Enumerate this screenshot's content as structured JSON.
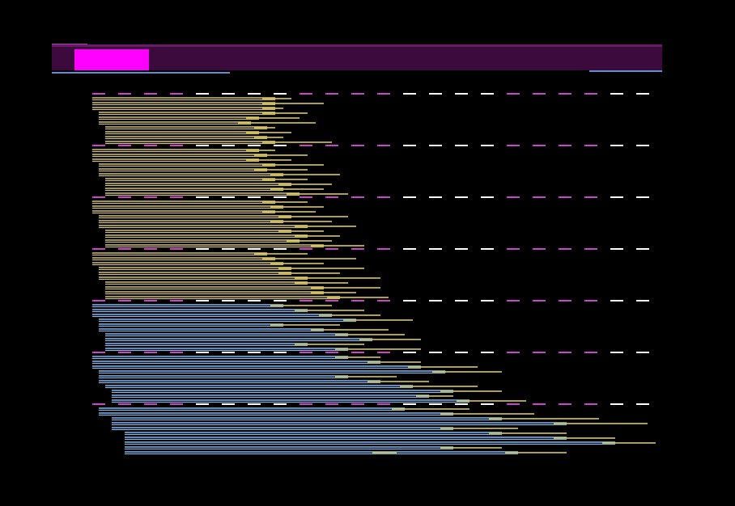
{
  "colors": {
    "background": "#000000",
    "header_fill": "#3d0a3d",
    "header_border": "#6a1a6a",
    "highlight": "#ff00ff",
    "underline": "#5f8fcf",
    "separator_magenta": "#cc44cc",
    "separator_white": "#ffffff",
    "bar_tan": "#cfc08a",
    "bar_blue": "#8fb4e8",
    "tail_yellow": "#e8d84a"
  },
  "groups": [
    {
      "palette": "tan",
      "indents": [
        0,
        0,
        0,
        8,
        8,
        8,
        16,
        16,
        16,
        16
      ],
      "ends": [
        340,
        340,
        340,
        340,
        320,
        310,
        330,
        320,
        330,
        340
      ],
      "tails": [
        360,
        400,
        350,
        380,
        370,
        390,
        340,
        360,
        350,
        410
      ]
    },
    {
      "palette": "tan",
      "indents": [
        0,
        0,
        0,
        8,
        8,
        8,
        16,
        16,
        16,
        16
      ],
      "ends": [
        320,
        330,
        320,
        340,
        330,
        350,
        340,
        360,
        350,
        370
      ],
      "tails": [
        340,
        380,
        360,
        400,
        380,
        420,
        380,
        410,
        400,
        430
      ]
    },
    {
      "palette": "tan",
      "indents": [
        0,
        0,
        0,
        8,
        8,
        8,
        16,
        16,
        16,
        16
      ],
      "ends": [
        340,
        350,
        340,
        360,
        350,
        380,
        360,
        380,
        370,
        400
      ],
      "tails": [
        380,
        400,
        390,
        430,
        410,
        440,
        400,
        420,
        410,
        450
      ]
    },
    {
      "palette": "tan",
      "indents": [
        0,
        0,
        0,
        8,
        8,
        8,
        16,
        16,
        16,
        16
      ],
      "ends": [
        330,
        340,
        350,
        360,
        360,
        380,
        380,
        400,
        400,
        420
      ],
      "tails": [
        380,
        440,
        400,
        450,
        420,
        470,
        430,
        470,
        440,
        480
      ]
    },
    {
      "palette": "blue",
      "indents": [
        0,
        0,
        0,
        8,
        8,
        8,
        16,
        16,
        16,
        16
      ],
      "ends": [
        350,
        380,
        410,
        440,
        350,
        400,
        430,
        460,
        380,
        430
      ],
      "tails": [
        410,
        450,
        470,
        510,
        420,
        480,
        500,
        520,
        450,
        520
      ]
    },
    {
      "palette": "blue",
      "indents": [
        0,
        0,
        0,
        8,
        8,
        8,
        16,
        24,
        24,
        24
      ],
      "ends": [
        430,
        470,
        520,
        550,
        430,
        470,
        510,
        560,
        530,
        580
      ],
      "tails": [
        470,
        520,
        590,
        620,
        490,
        530,
        590,
        620,
        560,
        650
      ]
    },
    {
      "palette": "blue",
      "indents": [
        8,
        8,
        24,
        24,
        24,
        40,
        40,
        40,
        40,
        40
      ],
      "ends": [
        500,
        560,
        620,
        700,
        560,
        620,
        700,
        760,
        560,
        640
      ],
      "tails": [
        580,
        660,
        740,
        800,
        640,
        700,
        760,
        810,
        620,
        700
      ]
    }
  ],
  "extra_tail": {
    "start": 460,
    "end": 490
  }
}
